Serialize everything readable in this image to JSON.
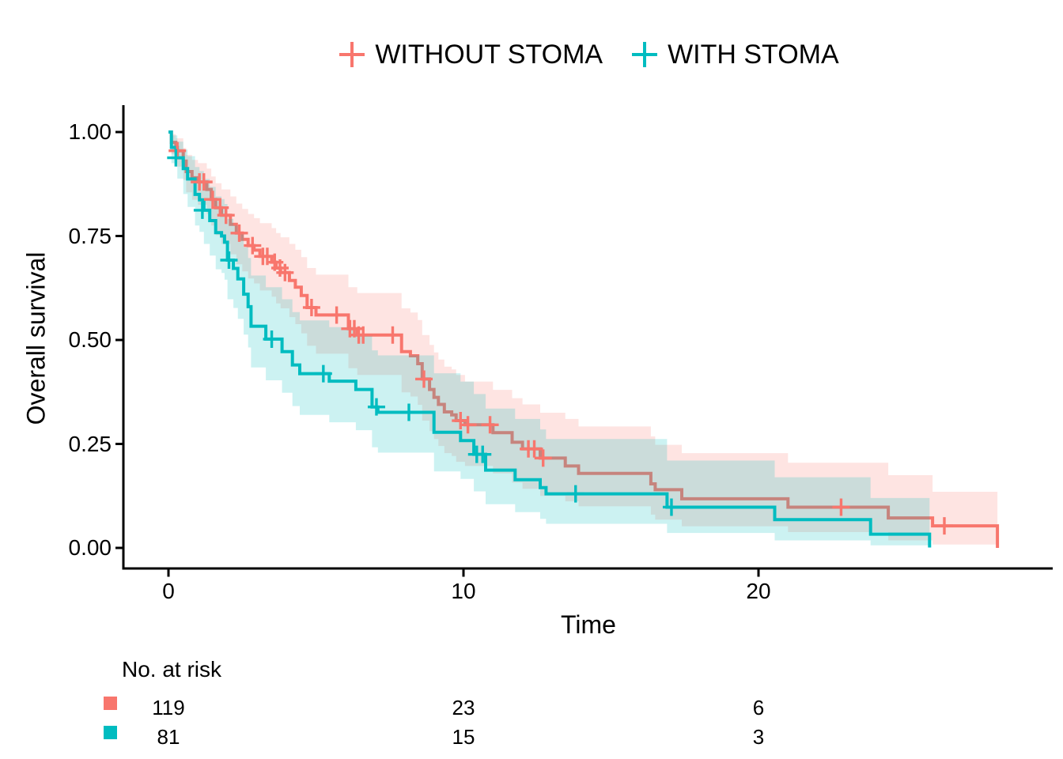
{
  "chart_data": {
    "type": "line",
    "subtype": "kaplan-meier-step-curves-with-confidence-bands",
    "title": "",
    "xlabel": "Time",
    "ylabel": "Overall survival",
    "xlim": [
      0,
      28.5
    ],
    "ylim": [
      0.0,
      1.0
    ],
    "grid": false,
    "legend_position": "top",
    "x_ticks": [
      {
        "label": "0",
        "value": 0
      },
      {
        "label": "10",
        "value": 10
      },
      {
        "label": "20",
        "value": 20
      }
    ],
    "y_ticks": [
      {
        "label": "1.00",
        "value": 1.0
      },
      {
        "label": "0.75",
        "value": 0.75
      },
      {
        "label": "0.50",
        "value": 0.5
      },
      {
        "label": "0.25",
        "value": 0.25
      },
      {
        "label": "0.00",
        "value": 0.0
      }
    ],
    "series": [
      {
        "name": "WITHOUT STOMA",
        "color": "#F8766D",
        "band_opacity": 0.2,
        "n_at_start": 119,
        "steps": [
          [
            0,
            1.0
          ],
          [
            0.1,
            0.975
          ],
          [
            0.25,
            0.955
          ],
          [
            0.5,
            0.93
          ],
          [
            0.6,
            0.905
          ],
          [
            0.8,
            0.89
          ],
          [
            1.0,
            0.88
          ],
          [
            1.3,
            0.862
          ],
          [
            1.45,
            0.838
          ],
          [
            1.6,
            0.818
          ],
          [
            1.8,
            0.8
          ],
          [
            2.1,
            0.778
          ],
          [
            2.3,
            0.757
          ],
          [
            2.5,
            0.742
          ],
          [
            2.7,
            0.727
          ],
          [
            2.9,
            0.716
          ],
          [
            3.1,
            0.701
          ],
          [
            3.5,
            0.687
          ],
          [
            3.65,
            0.673
          ],
          [
            3.8,
            0.662
          ],
          [
            4.1,
            0.643
          ],
          [
            4.3,
            0.627
          ],
          [
            4.5,
            0.607
          ],
          [
            4.7,
            0.578
          ],
          [
            5.0,
            0.56
          ],
          [
            6.1,
            0.527
          ],
          [
            6.4,
            0.512
          ],
          [
            7.9,
            0.472
          ],
          [
            8.2,
            0.462
          ],
          [
            8.45,
            0.443
          ],
          [
            8.6,
            0.406
          ],
          [
            8.85,
            0.381
          ],
          [
            9.0,
            0.362
          ],
          [
            9.15,
            0.345
          ],
          [
            9.35,
            0.327
          ],
          [
            9.6,
            0.32
          ],
          [
            9.75,
            0.306
          ],
          [
            10.05,
            0.296
          ],
          [
            11.0,
            0.277
          ],
          [
            11.65,
            0.254
          ],
          [
            12.0,
            0.238
          ],
          [
            12.6,
            0.216
          ],
          [
            13.45,
            0.197
          ],
          [
            13.9,
            0.179
          ],
          [
            16.35,
            0.154
          ],
          [
            16.5,
            0.14
          ],
          [
            17.4,
            0.118
          ],
          [
            21.0,
            0.098
          ],
          [
            24.4,
            0.072
          ],
          [
            25.9,
            0.053
          ],
          [
            28.1,
            0.0
          ]
        ],
        "censor_marks": [
          [
            0.3,
            0.955
          ],
          [
            1.05,
            0.88
          ],
          [
            1.2,
            0.88
          ],
          [
            1.5,
            0.838
          ],
          [
            1.75,
            0.818
          ],
          [
            1.95,
            0.8
          ],
          [
            2.4,
            0.757
          ],
          [
            2.85,
            0.727
          ],
          [
            3.2,
            0.701
          ],
          [
            3.35,
            0.701
          ],
          [
            3.6,
            0.687
          ],
          [
            3.78,
            0.673
          ],
          [
            3.95,
            0.662
          ],
          [
            4.85,
            0.578
          ],
          [
            5.7,
            0.56
          ],
          [
            6.15,
            0.527
          ],
          [
            6.3,
            0.527
          ],
          [
            6.45,
            0.512
          ],
          [
            6.6,
            0.512
          ],
          [
            7.6,
            0.512
          ],
          [
            8.66,
            0.406
          ],
          [
            9.9,
            0.306
          ],
          [
            10.15,
            0.296
          ],
          [
            10.9,
            0.296
          ],
          [
            12.2,
            0.238
          ],
          [
            12.4,
            0.238
          ],
          [
            12.7,
            0.216
          ],
          [
            22.8,
            0.098
          ],
          [
            26.3,
            0.053
          ]
        ],
        "confidence_band": [
          [
            0,
            1.0,
            1.0
          ],
          [
            0.1,
            0.947,
            0.995
          ],
          [
            0.25,
            0.917,
            0.985
          ],
          [
            0.5,
            0.885,
            0.962
          ],
          [
            0.6,
            0.855,
            0.945
          ],
          [
            0.8,
            0.837,
            0.933
          ],
          [
            1.0,
            0.825,
            0.925
          ],
          [
            1.3,
            0.803,
            0.912
          ],
          [
            1.45,
            0.775,
            0.893
          ],
          [
            1.6,
            0.752,
            0.877
          ],
          [
            1.8,
            0.731,
            0.862
          ],
          [
            2.1,
            0.706,
            0.845
          ],
          [
            2.3,
            0.682,
            0.828
          ],
          [
            2.5,
            0.665,
            0.815
          ],
          [
            2.7,
            0.648,
            0.803
          ],
          [
            2.9,
            0.636,
            0.793
          ],
          [
            3.1,
            0.619,
            0.781
          ],
          [
            3.5,
            0.604,
            0.769
          ],
          [
            3.65,
            0.588,
            0.757
          ],
          [
            3.8,
            0.576,
            0.747
          ],
          [
            4.1,
            0.555,
            0.731
          ],
          [
            4.3,
            0.538,
            0.717
          ],
          [
            4.5,
            0.516,
            0.699
          ],
          [
            4.7,
            0.486,
            0.673
          ],
          [
            5.0,
            0.467,
            0.657
          ],
          [
            6.1,
            0.432,
            0.627
          ],
          [
            6.4,
            0.416,
            0.613
          ],
          [
            7.9,
            0.374,
            0.576
          ],
          [
            8.2,
            0.364,
            0.566
          ],
          [
            8.45,
            0.344,
            0.548
          ],
          [
            8.6,
            0.306,
            0.512
          ],
          [
            8.85,
            0.281,
            0.488
          ],
          [
            9.0,
            0.262,
            0.47
          ],
          [
            9.15,
            0.245,
            0.453
          ],
          [
            9.35,
            0.228,
            0.436
          ],
          [
            9.6,
            0.221,
            0.429
          ],
          [
            9.75,
            0.207,
            0.416
          ],
          [
            10.05,
            0.197,
            0.4
          ],
          [
            11.0,
            0.179,
            0.38
          ],
          [
            11.65,
            0.157,
            0.36
          ],
          [
            12.0,
            0.142,
            0.345
          ],
          [
            12.6,
            0.125,
            0.325
          ],
          [
            13.45,
            0.112,
            0.31
          ],
          [
            13.9,
            0.1,
            0.292
          ],
          [
            16.35,
            0.08,
            0.268
          ],
          [
            16.5,
            0.068,
            0.248
          ],
          [
            17.4,
            0.052,
            0.228
          ],
          [
            21.0,
            0.038,
            0.205
          ],
          [
            24.4,
            0.018,
            0.175
          ],
          [
            25.9,
            0.008,
            0.135
          ],
          [
            28.1,
            0.008,
            0.135
          ]
        ]
      },
      {
        "name": "WITH STOMA",
        "color": "#00BCC0",
        "band_opacity": 0.2,
        "n_at_start": 81,
        "steps": [
          [
            0,
            1.0
          ],
          [
            0.1,
            0.963
          ],
          [
            0.3,
            0.938
          ],
          [
            0.5,
            0.912
          ],
          [
            0.65,
            0.887
          ],
          [
            0.9,
            0.85
          ],
          [
            1.05,
            0.837
          ],
          [
            1.2,
            0.812
          ],
          [
            1.4,
            0.787
          ],
          [
            1.6,
            0.758
          ],
          [
            1.8,
            0.75
          ],
          [
            1.9,
            0.735
          ],
          [
            2.0,
            0.692
          ],
          [
            2.2,
            0.672
          ],
          [
            2.35,
            0.647
          ],
          [
            2.55,
            0.61
          ],
          [
            2.7,
            0.58
          ],
          [
            2.8,
            0.533
          ],
          [
            3.3,
            0.502
          ],
          [
            3.85,
            0.472
          ],
          [
            4.2,
            0.44
          ],
          [
            4.45,
            0.419
          ],
          [
            5.45,
            0.401
          ],
          [
            6.35,
            0.381
          ],
          [
            6.9,
            0.339
          ],
          [
            7.1,
            0.326
          ],
          [
            9.0,
            0.278
          ],
          [
            9.9,
            0.258
          ],
          [
            10.35,
            0.225
          ],
          [
            10.75,
            0.187
          ],
          [
            11.75,
            0.164
          ],
          [
            12.6,
            0.145
          ],
          [
            12.8,
            0.13
          ],
          [
            16.9,
            0.098
          ],
          [
            20.55,
            0.068
          ],
          [
            23.8,
            0.033
          ],
          [
            25.8,
            0.001
          ]
        ],
        "censor_marks": [
          [
            0.25,
            0.938
          ],
          [
            1.15,
            0.812
          ],
          [
            2.05,
            0.692
          ],
          [
            3.5,
            0.502
          ],
          [
            5.25,
            0.419
          ],
          [
            7.05,
            0.339
          ],
          [
            8.15,
            0.326
          ],
          [
            10.45,
            0.225
          ],
          [
            10.65,
            0.225
          ],
          [
            13.8,
            0.13
          ],
          [
            17.05,
            0.098
          ]
        ],
        "confidence_band": [
          [
            0,
            1.0,
            1.0
          ],
          [
            0.1,
            0.925,
            0.992
          ],
          [
            0.3,
            0.888,
            0.977
          ],
          [
            0.5,
            0.851,
            0.958
          ],
          [
            0.65,
            0.82,
            0.942
          ],
          [
            0.9,
            0.775,
            0.916
          ],
          [
            1.05,
            0.76,
            0.906
          ],
          [
            1.2,
            0.731,
            0.887
          ],
          [
            1.4,
            0.703,
            0.868
          ],
          [
            1.6,
            0.67,
            0.845
          ],
          [
            1.8,
            0.661,
            0.839
          ],
          [
            1.9,
            0.645,
            0.827
          ],
          [
            2.0,
            0.598,
            0.791
          ],
          [
            2.2,
            0.577,
            0.775
          ],
          [
            2.35,
            0.551,
            0.754
          ],
          [
            2.55,
            0.513,
            0.723
          ],
          [
            2.7,
            0.482,
            0.697
          ],
          [
            2.8,
            0.434,
            0.655
          ],
          [
            3.3,
            0.403,
            0.627
          ],
          [
            3.85,
            0.373,
            0.598
          ],
          [
            4.2,
            0.341,
            0.567
          ],
          [
            4.45,
            0.32,
            0.547
          ],
          [
            5.45,
            0.302,
            0.531
          ],
          [
            6.35,
            0.283,
            0.513
          ],
          [
            6.9,
            0.242,
            0.475
          ],
          [
            7.1,
            0.229,
            0.463
          ],
          [
            9.0,
            0.184,
            0.42
          ],
          [
            9.9,
            0.166,
            0.4
          ],
          [
            10.35,
            0.136,
            0.37
          ],
          [
            10.75,
            0.105,
            0.335
          ],
          [
            11.75,
            0.086,
            0.31
          ],
          [
            12.6,
            0.07,
            0.285
          ],
          [
            12.8,
            0.058,
            0.262
          ],
          [
            16.9,
            0.036,
            0.21
          ],
          [
            20.55,
            0.018,
            0.17
          ],
          [
            23.8,
            0.006,
            0.12
          ],
          [
            25.8,
            0.001,
            0.105
          ]
        ]
      }
    ],
    "risk_table": {
      "title": "No. at risk",
      "time_points": [
        0,
        10,
        20
      ],
      "rows": [
        {
          "group": "WITHOUT STOMA",
          "color": "#F8766D",
          "values": [
            "119",
            "23",
            "6"
          ]
        },
        {
          "group": "WITH STOMA",
          "color": "#00BCC0",
          "values": [
            "81",
            "15",
            "3"
          ]
        }
      ]
    }
  }
}
